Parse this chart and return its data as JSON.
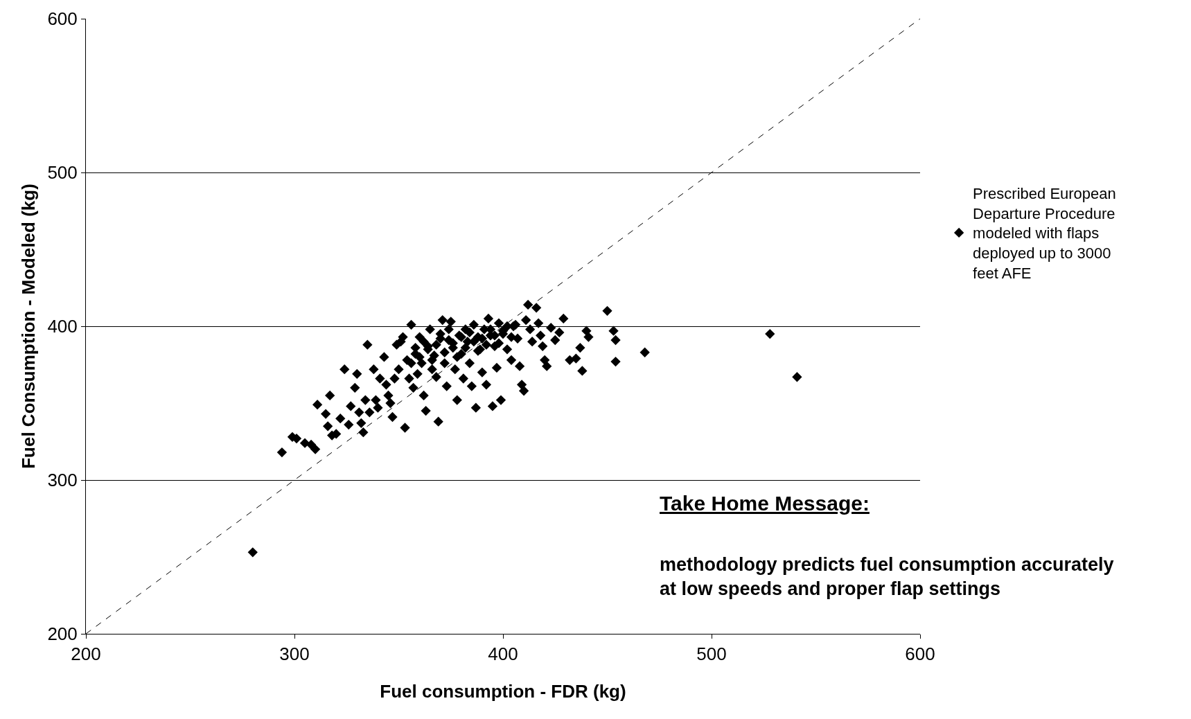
{
  "chart_data": {
    "type": "scatter",
    "xlabel": "Fuel consumption - FDR (kg)",
    "ylabel": "Fuel Consumption - Modeled (kg)",
    "xlim": [
      200,
      600
    ],
    "ylim": [
      200,
      600
    ],
    "xticks": [
      200,
      300,
      400,
      500,
      600
    ],
    "yticks": [
      200,
      300,
      400,
      500,
      600
    ],
    "grid": "y",
    "legend": "right",
    "marker": "diamond",
    "annotations": [
      "Take Home Message:",
      "methodology predicts fuel consumption accurately at low speeds and proper flap settings"
    ],
    "series": [
      {
        "name": "Prescribed European Departure Procedure modeled with flaps deployed up to 3000 feet AFE",
        "color": "#000000",
        "x": [
          280,
          294,
          299,
          301,
          305,
          308,
          310,
          311,
          315,
          316,
          317,
          318,
          320,
          322,
          324,
          326,
          327,
          329,
          330,
          331,
          332,
          333,
          334,
          335,
          336,
          338,
          339,
          340,
          341,
          343,
          344,
          345,
          346,
          347,
          348,
          349,
          350,
          351,
          352,
          353,
          354,
          355,
          356,
          357,
          358,
          359,
          360,
          361,
          362,
          363,
          364,
          365,
          366,
          367,
          368,
          369,
          370,
          371,
          372,
          373,
          374,
          375,
          376,
          377,
          378,
          379,
          380,
          381,
          382,
          383,
          384,
          385,
          386,
          387,
          388,
          389,
          390,
          391,
          392,
          393,
          394,
          395,
          396,
          397,
          398,
          399,
          400,
          402,
          404,
          405,
          407,
          408,
          409,
          410,
          411,
          412,
          413,
          414,
          416,
          417,
          418,
          419,
          420,
          421,
          423,
          425,
          427,
          429,
          432,
          435,
          437,
          438,
          440,
          441,
          450,
          453,
          454,
          454,
          468,
          528,
          541,
          356,
          358,
          360,
          362,
          364,
          366,
          368,
          370,
          372,
          374,
          376,
          378,
          380,
          382,
          384,
          386,
          388,
          390,
          392,
          394,
          396,
          398,
          400,
          402,
          404,
          406
        ],
        "values": [
          253,
          318,
          328,
          327,
          324,
          323,
          320,
          349,
          343,
          335,
          355,
          329,
          330,
          340,
          372,
          336,
          348,
          360,
          369,
          344,
          337,
          331,
          352,
          388,
          344,
          372,
          352,
          347,
          366,
          380,
          362,
          355,
          350,
          341,
          366,
          388,
          372,
          390,
          393,
          334,
          378,
          366,
          401,
          360,
          382,
          369,
          393,
          376,
          355,
          345,
          387,
          398,
          372,
          381,
          367,
          338,
          392,
          404,
          376,
          361,
          398,
          403,
          386,
          372,
          352,
          394,
          382,
          366,
          398,
          390,
          376,
          361,
          401,
          347,
          393,
          385,
          370,
          398,
          362,
          405,
          394,
          348,
          387,
          373,
          402,
          352,
          395,
          385,
          378,
          400,
          392,
          374,
          362,
          358,
          404,
          414,
          398,
          390,
          412,
          402,
          394,
          387,
          378,
          374,
          399,
          391,
          396,
          405,
          378,
          379,
          386,
          371,
          397,
          393,
          410,
          397,
          391,
          377,
          383,
          395,
          367,
          376,
          386,
          380,
          390,
          385,
          378,
          388,
          395,
          383,
          391,
          389,
          380,
          393,
          386,
          396,
          390,
          384,
          392,
          388,
          398,
          394,
          389,
          397,
          400,
          393,
          401
        ]
      },
      {
        "type": "line",
        "color": "#000000",
        "line_style": "dashed",
        "marker": "none",
        "x": [
          200,
          600
        ],
        "values": [
          200,
          600
        ]
      }
    ]
  }
}
